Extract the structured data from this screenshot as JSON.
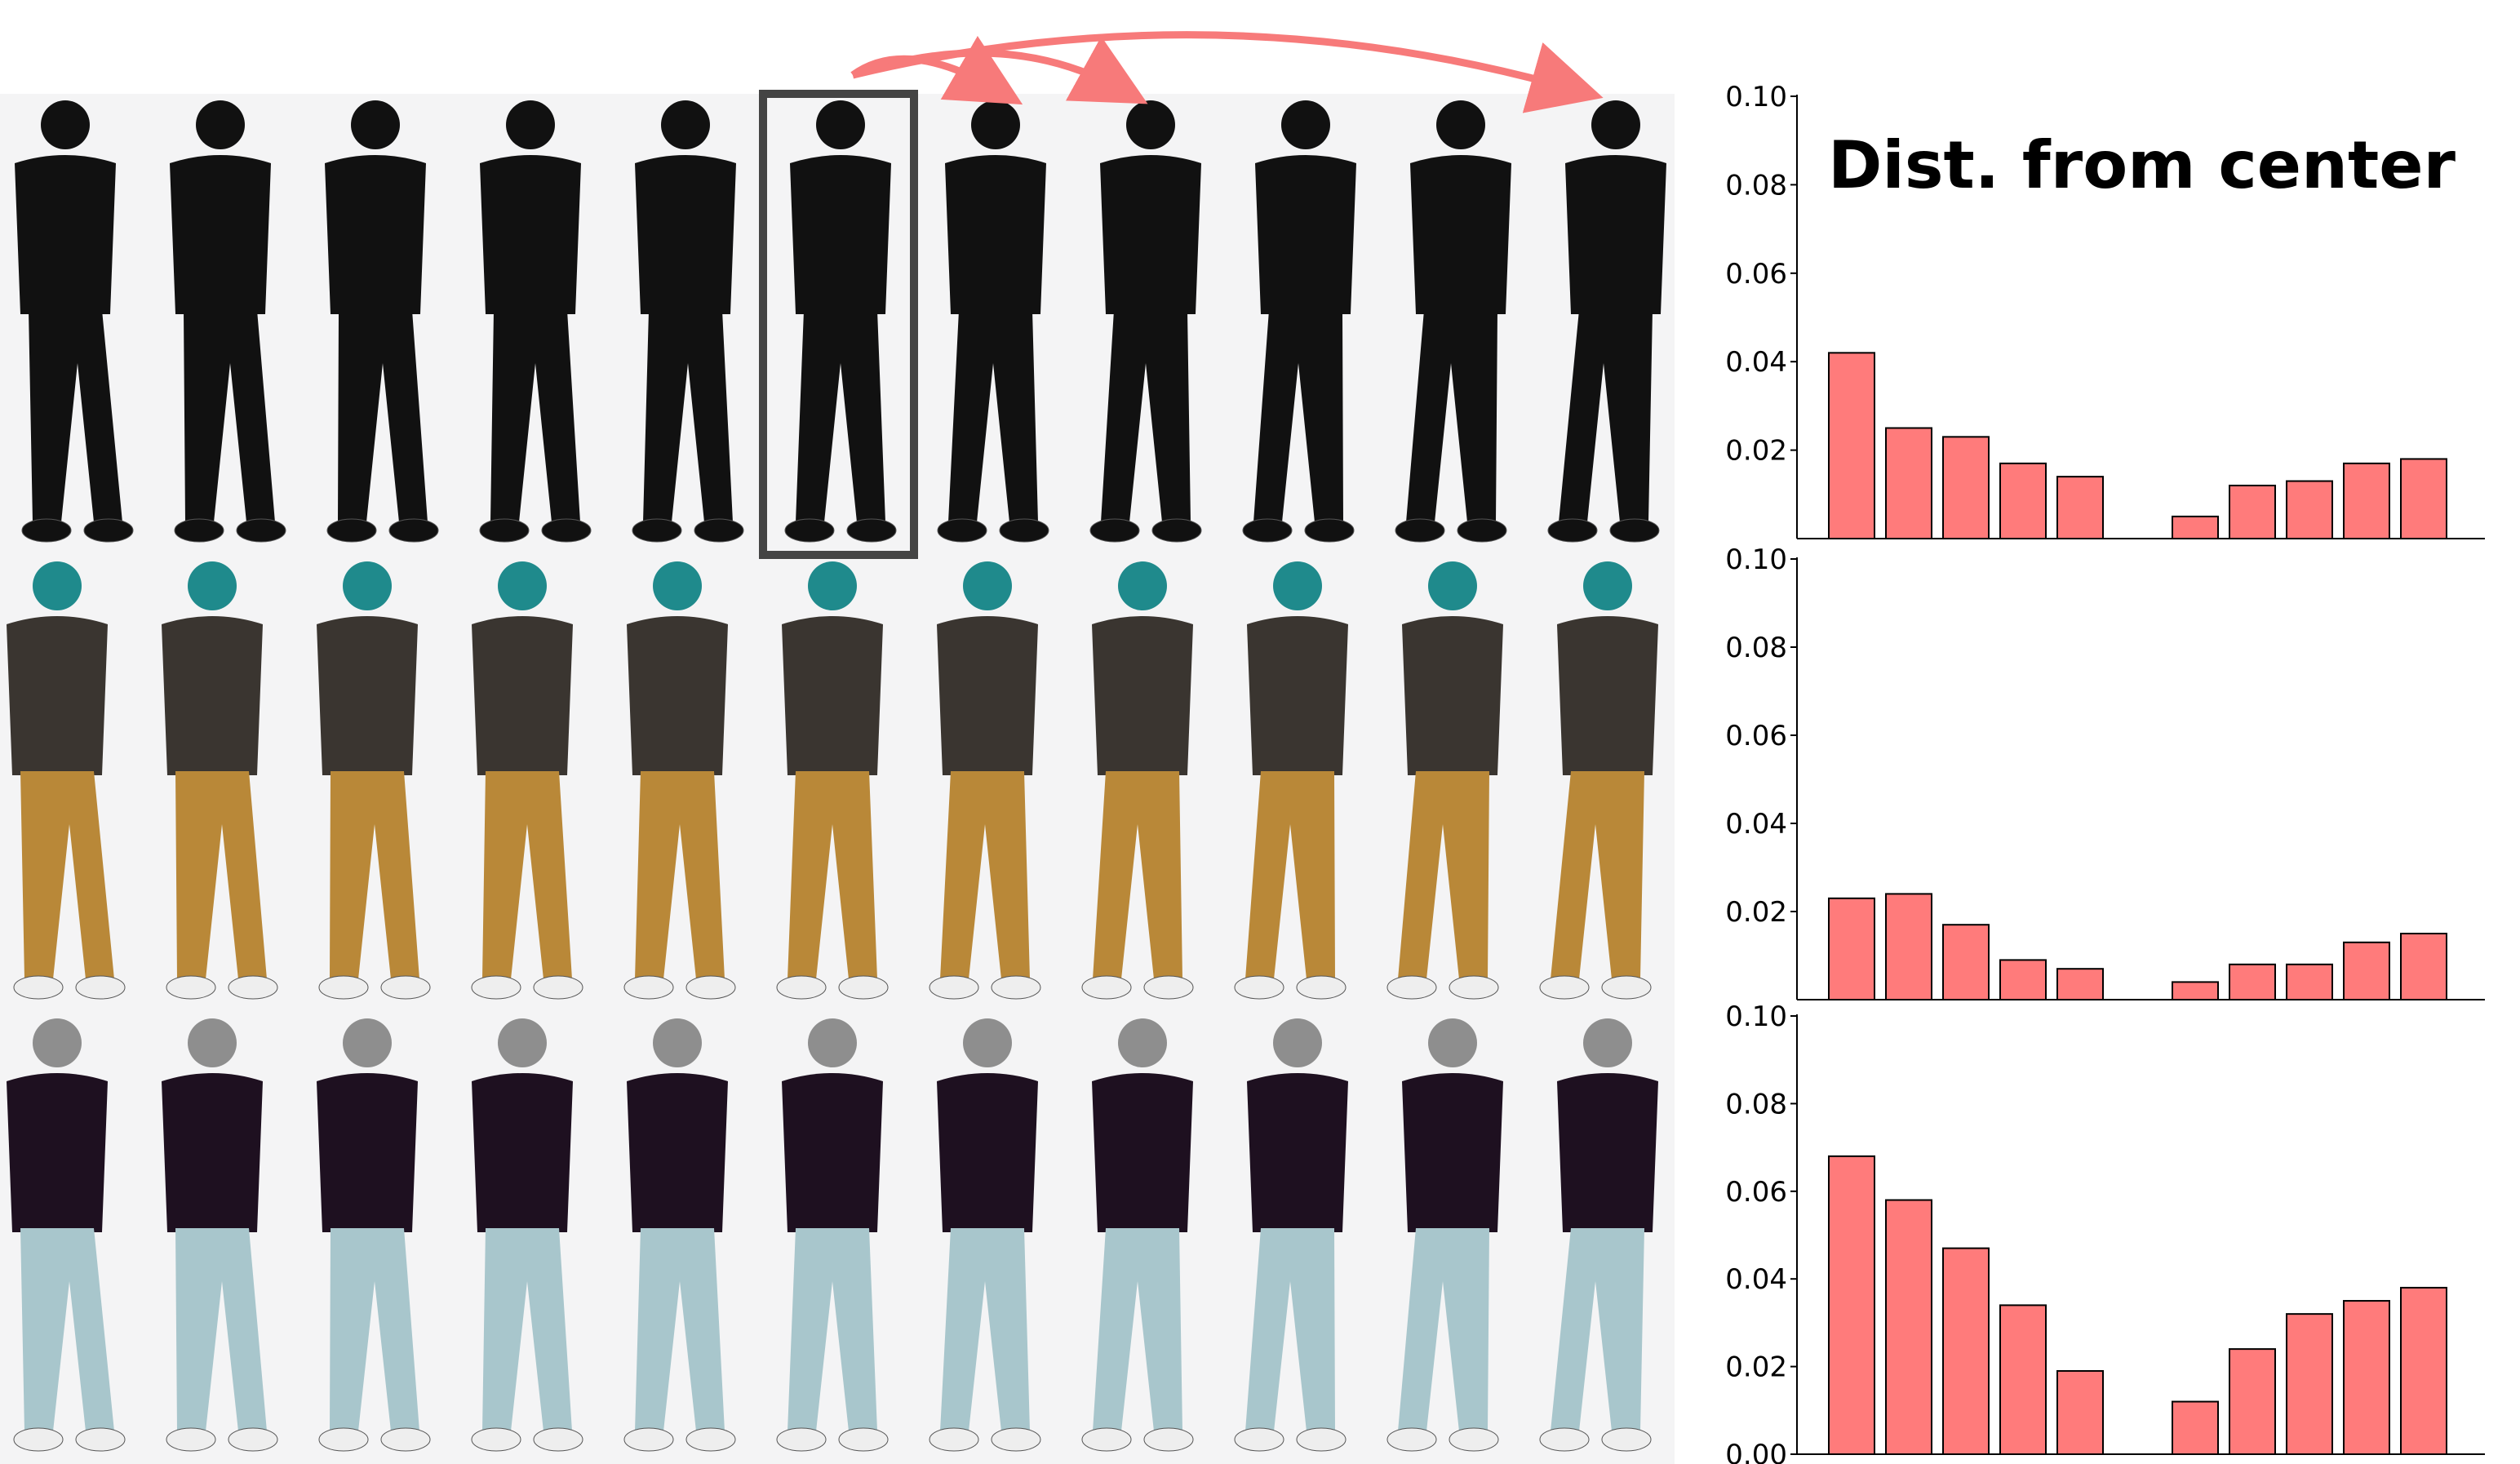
{
  "figure": {
    "title": "Dist. from center",
    "bar_color": "#ff7b7b",
    "bar_edge_color": "#000000",
    "arrow_color": "#f77a7a",
    "highlight_box_color": "#444444",
    "jacket_color": "#150f12",
    "pants_colors": [
      "#111111",
      "#b98838",
      "#a8c6cc"
    ],
    "shirt_colors": [
      "#111111",
      "#3a3530",
      "#1e1020"
    ],
    "hair_colors": [
      "#111111",
      "#1f8a8c",
      "#8e8e8e"
    ]
  },
  "frames": {
    "rows": 3,
    "columns": 11,
    "highlighted_column": 6,
    "arrow_targets": [
      7,
      8,
      11
    ]
  },
  "chart_data": [
    {
      "type": "bar",
      "title": "Dist. from center",
      "ylim": [
        0,
        0.1
      ],
      "yticks": [
        "0.10",
        "0.08",
        "0.06",
        "0.04",
        "0.02"
      ],
      "values_left": [
        0.042,
        0.025,
        0.023,
        0.017,
        0.014
      ],
      "values_right": [
        0.005,
        0.012,
        0.013,
        0.017,
        0.018
      ],
      "grid": false
    },
    {
      "type": "bar",
      "title": "",
      "ylim": [
        0,
        0.1
      ],
      "yticks": [
        "0.10",
        "0.08",
        "0.06",
        "0.04",
        "0.02"
      ],
      "values_left": [
        0.023,
        0.024,
        0.017,
        0.009,
        0.007
      ],
      "values_right": [
        0.004,
        0.008,
        0.008,
        0.013,
        0.015
      ],
      "grid": false
    },
    {
      "type": "bar",
      "title": "",
      "ylim": [
        0,
        0.1
      ],
      "yticks": [
        "0.10",
        "0.08",
        "0.06",
        "0.04",
        "0.02",
        "0.00"
      ],
      "values_left": [
        0.068,
        0.058,
        0.047,
        0.034,
        0.019
      ],
      "values_right": [
        0.012,
        0.024,
        0.032,
        0.035,
        0.038
      ],
      "grid": false
    }
  ]
}
